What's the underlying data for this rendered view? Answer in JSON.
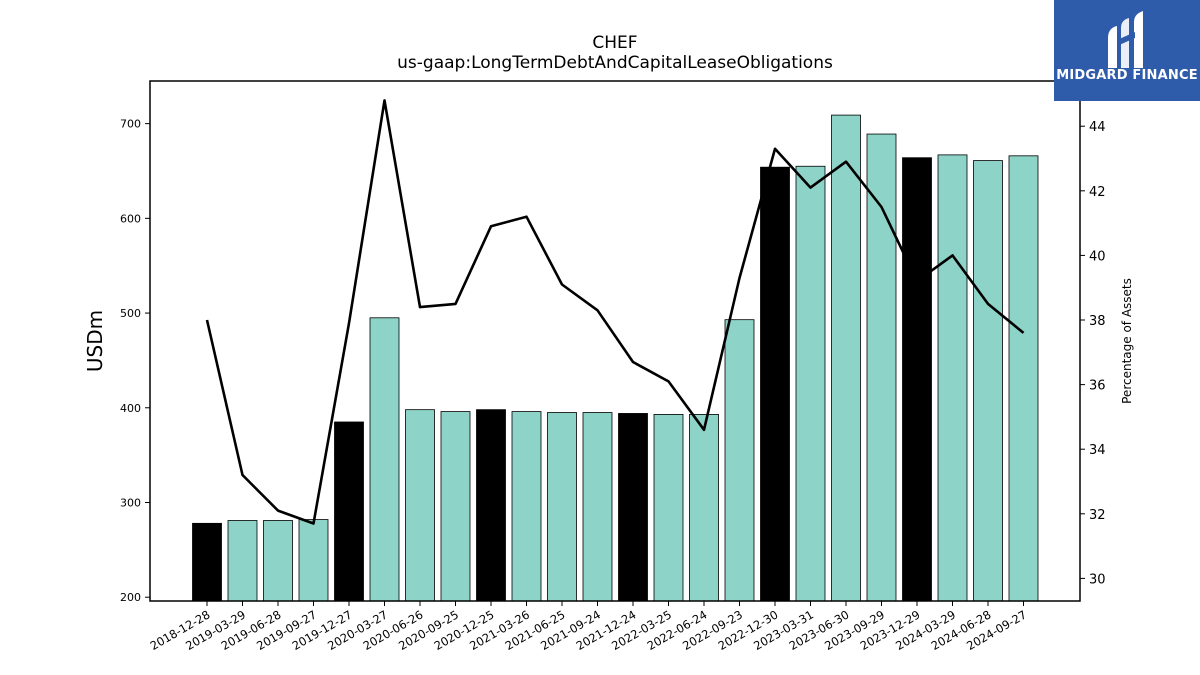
{
  "brand": {
    "name": "MIDGARD FINANCE"
  },
  "colors": {
    "annual_bar": "#000000",
    "quarter_bar": "#8dd3c7",
    "line": "#000000",
    "logo_bg": "#2f5bab"
  },
  "chart_data": {
    "type": "bar",
    "title": "CHEF",
    "subtitle": "us-gaap:LongTermDebtAndCapitalLeaseObligations",
    "ylabel": "USDm",
    "y2label": "Percentage of Assets",
    "ylim": [
      196,
      745
    ],
    "y2lim": [
      29.3,
      45.4
    ],
    "yticks": [
      200,
      300,
      400,
      500,
      600,
      700
    ],
    "y2ticks": [
      30,
      32,
      34,
      36,
      38,
      40,
      42,
      44
    ],
    "categories": [
      "2018-12-28",
      "2019-03-29",
      "2019-06-28",
      "2019-09-27",
      "2019-12-27",
      "2020-03-27",
      "2020-06-26",
      "2020-09-25",
      "2020-12-25",
      "2021-03-26",
      "2021-06-25",
      "2021-09-24",
      "2021-12-24",
      "2022-03-25",
      "2022-06-24",
      "2022-09-23",
      "2022-12-30",
      "2023-03-31",
      "2023-06-30",
      "2023-09-29",
      "2023-12-29",
      "2024-03-29",
      "2024-06-28",
      "2024-09-27"
    ],
    "series": [
      {
        "type": "bar",
        "values": [
          278,
          281,
          281,
          282,
          385,
          495,
          398,
          396,
          398,
          396,
          395,
          395,
          394,
          393,
          393,
          493,
          654,
          655,
          709,
          689,
          664,
          667,
          661,
          666
        ],
        "annual": [
          true,
          false,
          false,
          false,
          true,
          false,
          false,
          false,
          true,
          false,
          false,
          false,
          true,
          false,
          false,
          false,
          true,
          false,
          false,
          false,
          true,
          false,
          false,
          false
        ]
      },
      {
        "type": "line",
        "axis": "right",
        "values": [
          38.0,
          33.2,
          32.1,
          31.7,
          37.9,
          44.8,
          38.4,
          38.5,
          40.9,
          41.2,
          39.1,
          38.3,
          36.7,
          36.1,
          34.6,
          39.3,
          43.3,
          42.1,
          42.9,
          41.5,
          39.2,
          40.0,
          38.5,
          37.6
        ]
      }
    ]
  }
}
